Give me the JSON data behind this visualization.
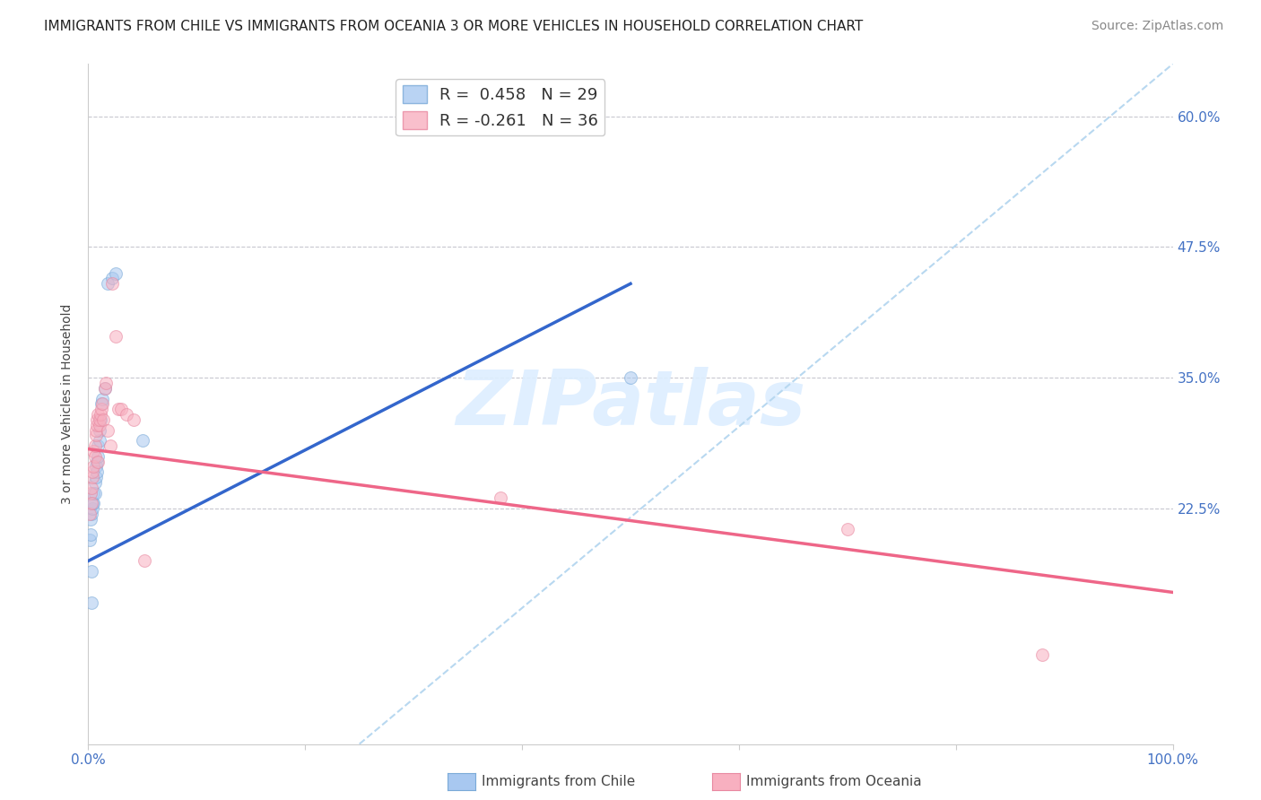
{
  "title": "IMMIGRANTS FROM CHILE VS IMMIGRANTS FROM OCEANIA 3 OR MORE VEHICLES IN HOUSEHOLD CORRELATION CHART",
  "source": "Source: ZipAtlas.com",
  "ylabel": "3 or more Vehicles in Household",
  "xlim": [
    0.0,
    1.0
  ],
  "ylim": [
    0.0,
    0.65
  ],
  "ytick_positions": [
    0.0,
    0.225,
    0.35,
    0.475,
    0.6
  ],
  "ytick_labels_right": [
    "",
    "22.5%",
    "35.0%",
    "47.5%",
    "60.0%"
  ],
  "grid_color": "#c8c8d0",
  "background_color": "#ffffff",
  "chile_color": "#a8c8f0",
  "chile_edge_color": "#7aaad8",
  "oceania_color": "#f8b0c0",
  "oceania_edge_color": "#e888a0",
  "chile_line_color": "#3366cc",
  "oceania_line_color": "#ee6688",
  "ref_line_color": "#b8d8f0",
  "R_chile": 0.458,
  "N_chile": 29,
  "R_oceania": -0.261,
  "N_oceania": 36,
  "chile_line_x0": 0.0,
  "chile_line_y0": 0.175,
  "chile_line_x1": 0.5,
  "chile_line_y1": 0.44,
  "oceania_line_x0": 0.0,
  "oceania_line_y0": 0.282,
  "oceania_line_x1": 1.0,
  "oceania_line_y1": 0.145,
  "ref_line_x0": 0.25,
  "ref_line_y0": 0.0,
  "ref_line_x1": 1.0,
  "ref_line_y1": 0.65,
  "chile_scatter_x": [
    0.001,
    0.002,
    0.002,
    0.003,
    0.003,
    0.004,
    0.004,
    0.005,
    0.005,
    0.006,
    0.006,
    0.007,
    0.007,
    0.008,
    0.008,
    0.009,
    0.009,
    0.01,
    0.01,
    0.011,
    0.012,
    0.013,
    0.015,
    0.018,
    0.022,
    0.025,
    0.05,
    0.5,
    0.003
  ],
  "chile_scatter_y": [
    0.195,
    0.2,
    0.215,
    0.22,
    0.165,
    0.225,
    0.23,
    0.23,
    0.24,
    0.24,
    0.25,
    0.255,
    0.265,
    0.27,
    0.26,
    0.275,
    0.285,
    0.29,
    0.3,
    0.31,
    0.325,
    0.33,
    0.34,
    0.44,
    0.445,
    0.45,
    0.29,
    0.35,
    0.135
  ],
  "oceania_scatter_x": [
    0.001,
    0.002,
    0.003,
    0.003,
    0.004,
    0.004,
    0.005,
    0.005,
    0.006,
    0.006,
    0.007,
    0.007,
    0.008,
    0.008,
    0.009,
    0.009,
    0.01,
    0.01,
    0.011,
    0.012,
    0.013,
    0.014,
    0.015,
    0.016,
    0.018,
    0.02,
    0.022,
    0.025,
    0.028,
    0.03,
    0.035,
    0.042,
    0.052,
    0.38,
    0.7,
    0.88
  ],
  "oceania_scatter_y": [
    0.22,
    0.24,
    0.23,
    0.245,
    0.255,
    0.26,
    0.265,
    0.28,
    0.275,
    0.285,
    0.295,
    0.3,
    0.305,
    0.31,
    0.315,
    0.27,
    0.305,
    0.31,
    0.315,
    0.32,
    0.325,
    0.31,
    0.34,
    0.345,
    0.3,
    0.285,
    0.44,
    0.39,
    0.32,
    0.32,
    0.315,
    0.31,
    0.175,
    0.235,
    0.205,
    0.085
  ],
  "marker_size": 100,
  "alpha": 0.55,
  "title_fontsize": 11,
  "axis_label_fontsize": 10,
  "tick_fontsize": 11,
  "legend_fontsize": 13,
  "source_fontsize": 10
}
